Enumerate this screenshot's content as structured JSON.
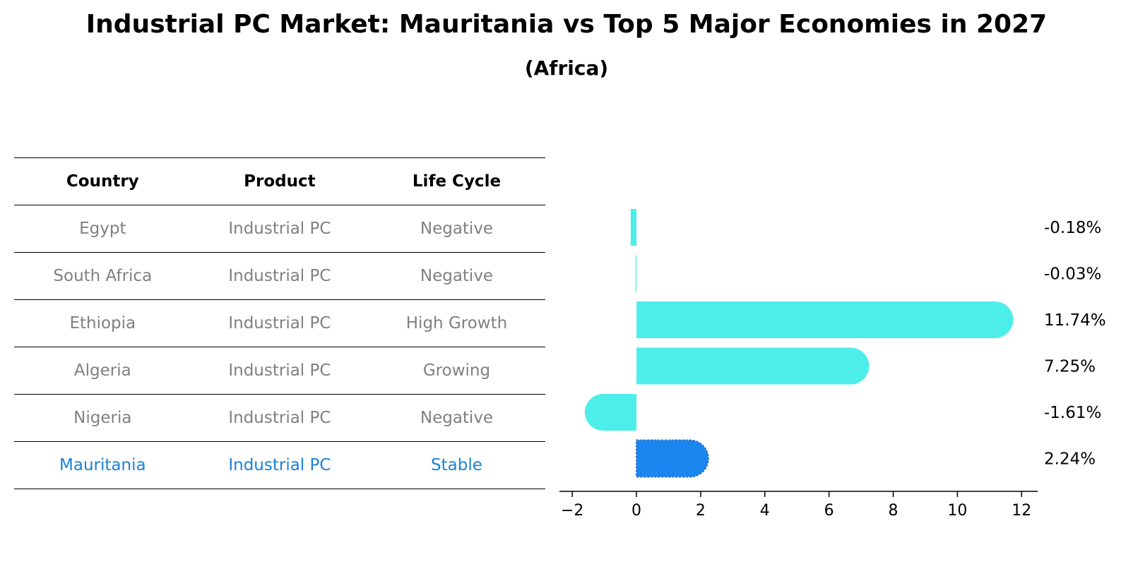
{
  "title": "Industrial PC Market: Mauritania vs Top 5 Major Economies in 2027",
  "subtitle": "(Africa)",
  "table": {
    "headers": [
      "Country",
      "Product",
      "Life Cycle"
    ],
    "rows": [
      {
        "country": "Egypt",
        "product": "Industrial PC",
        "life_cycle": "Negative",
        "highlight": false
      },
      {
        "country": "South Africa",
        "product": "Industrial PC",
        "life_cycle": "Negative",
        "highlight": false
      },
      {
        "country": "Ethiopia",
        "product": "Industrial PC",
        "life_cycle": "High Growth",
        "highlight": false
      },
      {
        "country": "Algeria",
        "product": "Industrial PC",
        "life_cycle": "Growing",
        "highlight": false
      },
      {
        "country": "Nigeria",
        "product": "Industrial PC",
        "life_cycle": "Negative",
        "highlight": false
      },
      {
        "country": "Mauritania",
        "product": "Industrial PC",
        "life_cycle": "Stable",
        "highlight": true
      }
    ]
  },
  "chart_data": {
    "type": "bar",
    "orientation": "horizontal",
    "categories": [
      "Egypt",
      "South Africa",
      "Ethiopia",
      "Algeria",
      "Nigeria",
      "Mauritania"
    ],
    "values": [
      -0.18,
      -0.03,
      11.74,
      7.25,
      -1.61,
      2.24
    ],
    "value_labels": [
      "-0.18%",
      "-0.03%",
      "11.74%",
      "7.25%",
      "-1.61%",
      "2.24%"
    ],
    "xlim": [
      -2.4,
      12.5
    ],
    "xticks": [
      -2,
      0,
      2,
      4,
      6,
      8,
      10,
      12
    ],
    "xtick_labels": [
      "−2",
      "0",
      "2",
      "4",
      "6",
      "8",
      "10",
      "12"
    ],
    "grid": false,
    "colors": {
      "default": "#4deeea",
      "highlight": "#1a87f0",
      "highlight_edge": "#2a6fcf"
    }
  }
}
